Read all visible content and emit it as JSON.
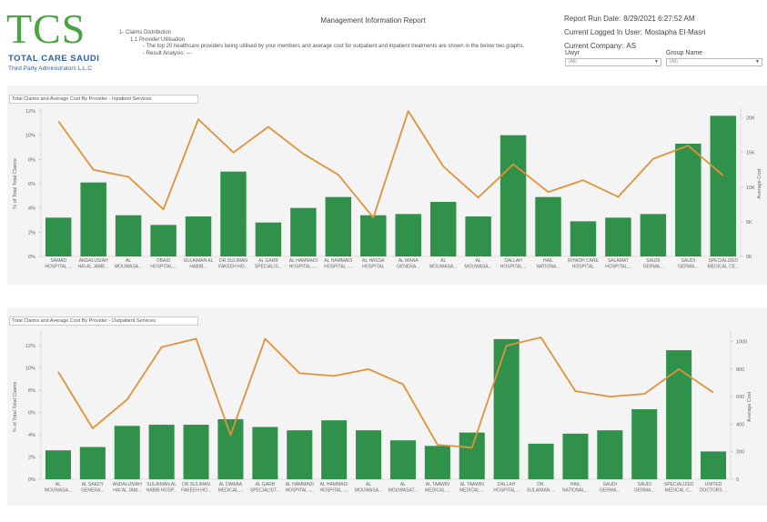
{
  "logo": {
    "mark": "TCS",
    "name": "TOTAL CARE SAUDI",
    "subtitle": "Third Party Administrators L.L.C"
  },
  "report": {
    "title": "Management Information Report"
  },
  "description": {
    "line1": "1- Claims Distribution",
    "line2": "1.1 Provider Utilisation",
    "line3": "- The top 20 healthcare providers being utilised by your members and average cost for outpatient and inpatient treatments are shown in the below two graphs.",
    "line4": "- Result Analysis: ---"
  },
  "meta": {
    "run_date_label": "Report Run Date:",
    "run_date_value": "8/29/2021 6:27:52 AM",
    "user_label": "Current Logged In User:",
    "user_value": "Mostapha El-Masri",
    "company_label": "Current Company:",
    "company_value": "AS"
  },
  "filters": {
    "uwyr": {
      "label": "Uwyr",
      "value": "(All)"
    },
    "group": {
      "label": "Group Name",
      "value": "(All)"
    }
  },
  "colors": {
    "bar": "#2f914a",
    "line": "#e0923c",
    "panel": "#f4f4f4"
  },
  "chart_data": [
    {
      "type": "bar",
      "title": "Total Claims and Average Cost By Provider - Inpatient Services",
      "ylabel": "% of Total Total Claims",
      "y2label": "Average Cost",
      "ylim": [
        0,
        12
      ],
      "yticks": [
        "0%",
        "2%",
        "4%",
        "6%",
        "8%",
        "10%",
        "12%"
      ],
      "y2lim": [
        0,
        21000
      ],
      "y2ticks": [
        "0K",
        "5K",
        "10K",
        "15K",
        "20K"
      ],
      "categories": [
        [
          "SAMAD",
          "HOSPITAL ..."
        ],
        [
          "ANDALUSIAH",
          "HAI AL JAME..."
        ],
        [
          "AL",
          "MOUWASA..."
        ],
        [
          "OBAID",
          "HOSPITAL..."
        ],
        [
          "SULAIMAN AL",
          "HABIB..."
        ],
        [
          "DR.SULIMAN",
          "FAKEEH HO..."
        ],
        [
          "AL GARB",
          "SPECIALIS..."
        ],
        [
          "AL HAMMADI",
          "HOSPITAL -..."
        ],
        [
          "AL HAMMADI",
          "HOSPITAL -..."
        ],
        [
          "AL HASSA",
          "HOSPITAL"
        ],
        [
          "AL MANA",
          "GENERA..."
        ],
        [
          "AL",
          "MOUWASA..."
        ],
        [
          "AL",
          "MOUWASA..."
        ],
        [
          "DALLAH",
          "HOSPITAL..."
        ],
        [
          "HAIL",
          "NATIONA..."
        ],
        [
          "RIYADH CARE",
          "HOSPITAL"
        ],
        [
          "SALAMAT",
          "HOSPITAL..."
        ],
        [
          "SAUDI",
          "GERMA..."
        ],
        [
          "SAUDI",
          "GERMA..."
        ],
        [
          "SPECIALIZED",
          "MEDICAL CE..."
        ]
      ],
      "series": [
        {
          "name": "% of Total Total Claims",
          "kind": "bar",
          "values": [
            3.2,
            6.1,
            3.4,
            2.6,
            3.3,
            7.0,
            2.8,
            4.0,
            4.9,
            3.4,
            3.5,
            4.5,
            3.3,
            10.0,
            4.9,
            2.9,
            3.2,
            3.5,
            9.3,
            11.6
          ]
        },
        {
          "name": "Average Cost",
          "kind": "line",
          "values": [
            19500,
            12500,
            11500,
            6800,
            19800,
            15000,
            18700,
            14800,
            11800,
            5600,
            21000,
            13000,
            8500,
            13300,
            9300,
            11000,
            8600,
            14100,
            16000,
            11700
          ]
        }
      ]
    },
    {
      "type": "bar",
      "title": "Total Claims and Average Cost By Provider - Outpatient Services",
      "ylabel": "% of Total Total Claims",
      "y2label": "Average Cost",
      "ylim": [
        0,
        13
      ],
      "yticks": [
        "0%",
        "2%",
        "4%",
        "6%",
        "8%",
        "10%",
        "12%"
      ],
      "y2lim": [
        0,
        1050
      ],
      "y2ticks": [
        "0",
        "200",
        "400",
        "600",
        "800",
        "1000"
      ],
      "categories": [
        [
          "AL",
          "MOUWASA..."
        ],
        [
          "AL SAEDY",
          "GENERA..."
        ],
        [
          "ANDALUSIAH",
          "HAI AL JAM..."
        ],
        [
          "SULAIMAN AL",
          "HABIB HOSP..."
        ],
        [
          "DR.SULIMAN",
          "FAKEEH HO..."
        ],
        [
          "AL DAWAA",
          "MEDICAL ..."
        ],
        [
          "AL GARB",
          "SPECIALIST..."
        ],
        [
          "AL HAMMADI",
          "HOSPITAL -..."
        ],
        [
          "AL HAMMADI",
          "HOSPITAL -..."
        ],
        [
          "AL",
          "MOUWASA..."
        ],
        [
          "AL",
          "MOUWASAT..."
        ],
        [
          "AL TAAWIN",
          "MEDICAL ..."
        ],
        [
          "AL TAAWIN",
          "MEDICAL ..."
        ],
        [
          "DALLAH",
          "HOSPITAL..."
        ],
        [
          "DR.",
          "SULAIMAN ..."
        ],
        [
          "HAIL",
          "NATIONAL..."
        ],
        [
          "SAUDI",
          "GERMA..."
        ],
        [
          "SAUDI",
          "GERMA..."
        ],
        [
          "SPECIALIZED",
          "MEDICAL C..."
        ],
        [
          "UNITED",
          "DOCTORS ..."
        ]
      ],
      "series": [
        {
          "name": "% of Total Total Claims",
          "kind": "bar",
          "values": [
            2.6,
            2.9,
            4.8,
            4.9,
            4.9,
            5.4,
            4.7,
            4.4,
            5.3,
            4.4,
            3.5,
            3.0,
            4.2,
            12.6,
            3.2,
            4.1,
            4.4,
            6.3,
            11.6,
            2.5
          ]
        },
        {
          "name": "Average Cost",
          "kind": "line",
          "values": [
            780,
            370,
            580,
            960,
            1020,
            320,
            1020,
            770,
            750,
            800,
            690,
            250,
            230,
            970,
            1030,
            640,
            600,
            620,
            800,
            630
          ]
        }
      ]
    }
  ]
}
